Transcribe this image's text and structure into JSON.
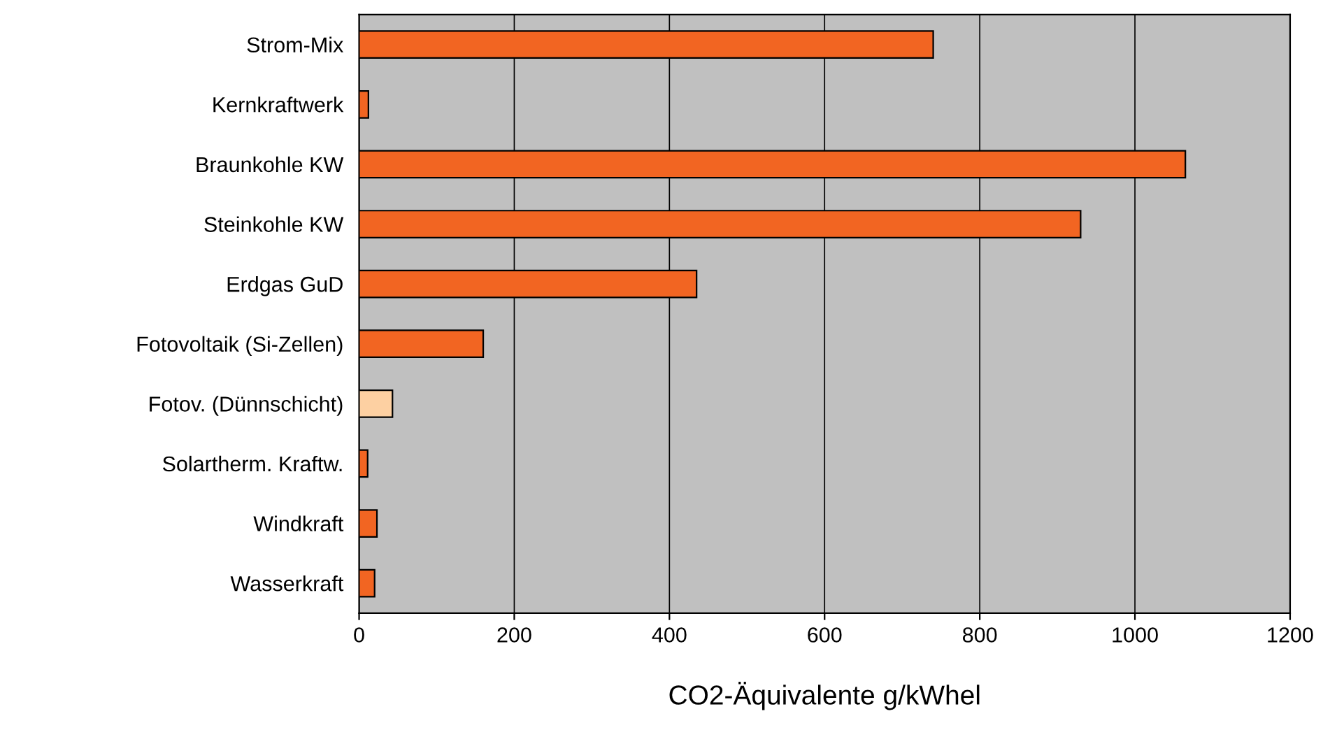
{
  "chart_data": {
    "type": "bar",
    "orientation": "horizontal",
    "xlabel": "CO2-Äquivalente g/kWhel",
    "categories": [
      "Strom-Mix",
      "Kernkraftwerk",
      "Braunkohle KW",
      "Steinkohle KW",
      "Erdgas GuD",
      "Fotovoltaik (Si-Zellen)",
      "Fotov. (Dünnschicht)",
      "Solartherm. Kraftw.",
      "Windkraft",
      "Wasserkraft"
    ],
    "values": [
      740,
      12,
      1065,
      930,
      435,
      160,
      43,
      11,
      23,
      20
    ],
    "colors": [
      "#f26522",
      "#f26522",
      "#f26522",
      "#f26522",
      "#f26522",
      "#f26522",
      "#fdd0a2",
      "#f26522",
      "#f26522",
      "#f26522"
    ],
    "xlim": [
      0,
      1200
    ],
    "xticks": [
      0,
      200,
      400,
      600,
      800,
      1000,
      1200
    ],
    "grid": "x"
  }
}
